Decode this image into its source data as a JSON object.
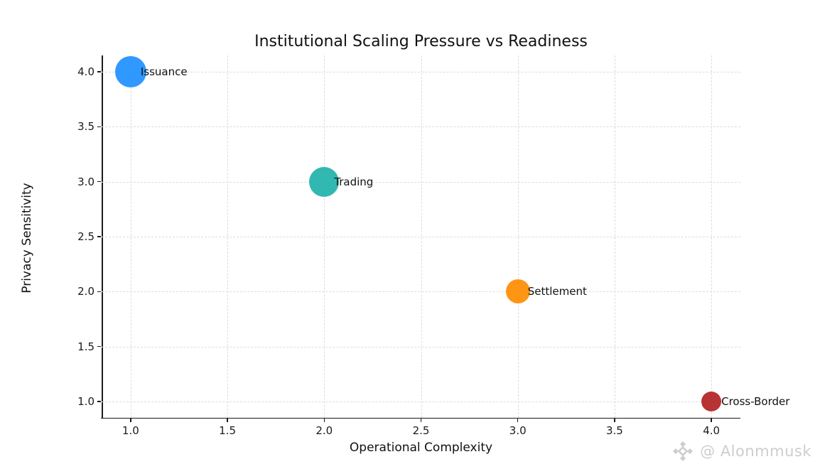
{
  "chart_data": {
    "type": "scatter",
    "title": "Institutional Scaling Pressure vs Readiness",
    "xlabel": "Operational Complexity",
    "ylabel": "Privacy Sensitivity",
    "xlim": [
      0.85,
      4.15
    ],
    "ylim": [
      0.85,
      4.15
    ],
    "xticks": [
      "1.0",
      "1.5",
      "2.0",
      "2.5",
      "3.0",
      "3.5",
      "4.0"
    ],
    "yticks": [
      "1.0",
      "1.5",
      "2.0",
      "2.5",
      "3.0",
      "3.5",
      "4.0"
    ],
    "grid": {
      "visible": true,
      "style": "dashed",
      "color": "#dcdcdc"
    },
    "legend": "none",
    "points": [
      {
        "label": "Issuance",
        "x": 1,
        "y": 4,
        "radius_px": 22,
        "color": "#1E90FF"
      },
      {
        "label": "Trading",
        "x": 2,
        "y": 3,
        "radius_px": 21,
        "color": "#20B2AA"
      },
      {
        "label": "Settlement",
        "x": 3,
        "y": 2,
        "radius_px": 17,
        "color": "#FF8C00"
      },
      {
        "label": "Cross-Border",
        "x": 4,
        "y": 1,
        "radius_px": 14,
        "color": "#B22222"
      }
    ]
  },
  "watermark": {
    "text": "@ Alonmmusk",
    "icon": "binance-diamond-icon",
    "color": "#cdcdcd"
  }
}
